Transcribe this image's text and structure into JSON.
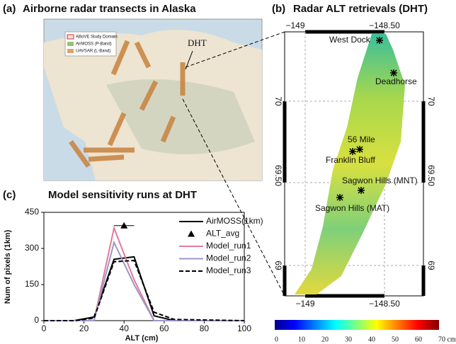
{
  "panel_a": {
    "label": "(a)",
    "title": "Airborne radar transects in Alaska",
    "legend": [
      "ABoVE Study Domain",
      "AirMOSS (P-Band)",
      "UAVSAR (L-Band)"
    ],
    "annotation": "DHT"
  },
  "panel_b": {
    "label": "(b)",
    "title": "Radar ALT retrievals (DHT)",
    "lon_labels": [
      "−149",
      "−148.50"
    ],
    "lat_labels": [
      "70",
      "69.50",
      "69"
    ],
    "sites": [
      "West Dock",
      "Deadhorse",
      "56 Mile",
      "Franklin Bluff",
      "Sagwon Hills (MNT)",
      "Sagwon Hills (MAT)"
    ],
    "colorbar_labels": [
      "0",
      "10",
      "20",
      "30",
      "40",
      "50",
      "60",
      "70 cm"
    ]
  },
  "chart_data": {
    "type": "line",
    "label": "(c)",
    "title": "Model sensitivity runs at DHT",
    "x_label": "ALT (cm)",
    "y_label": "Num of pixels (1km)",
    "xlim": [
      0,
      100
    ],
    "xticks": [
      0,
      20,
      40,
      60,
      80,
      100
    ],
    "ylim": [
      0,
      450
    ],
    "yticks": [
      0,
      150,
      300,
      450
    ],
    "series": [
      {
        "name": "AirMOSS(1km)",
        "color": "#000000",
        "style": "solid",
        "x": [
          0,
          15,
          25,
          35,
          45,
          55,
          65,
          100
        ],
        "values": [
          0,
          0,
          15,
          255,
          265,
          20,
          0,
          0
        ]
      },
      {
        "name": "ALT_avg",
        "color": "#000000",
        "marker": "triangle",
        "x": [
          40
        ],
        "values": [
          395
        ],
        "xerr": [
          5
        ]
      },
      {
        "name": "Model_run1",
        "color": "#e07b9a",
        "style": "solid",
        "x": [
          0,
          25,
          35,
          45,
          55,
          100
        ],
        "values": [
          0,
          0,
          385,
          170,
          0,
          0
        ]
      },
      {
        "name": "Model_run2",
        "color": "#9b97c8",
        "style": "solid",
        "x": [
          0,
          25,
          35,
          45,
          55,
          100
        ],
        "values": [
          0,
          0,
          325,
          150,
          0,
          0
        ]
      },
      {
        "name": "Model_run3",
        "color": "#000000",
        "style": "dashed",
        "x": [
          0,
          15,
          25,
          35,
          45,
          55,
          65,
          100
        ],
        "values": [
          0,
          0,
          10,
          245,
          250,
          35,
          5,
          0
        ]
      }
    ]
  }
}
